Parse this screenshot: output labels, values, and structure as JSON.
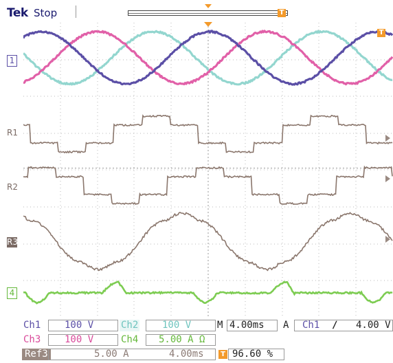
{
  "header": {
    "brand": "Tek",
    "acquisition_state": "Stop",
    "trigger_position_badge": "T"
  },
  "screen": {
    "trigger_level_badge": "T"
  },
  "markers": {
    "ch1": "1",
    "ref1": "R1",
    "ref2": "R2",
    "ref3": "R3",
    "ch4": "4"
  },
  "readout": {
    "row1": {
      "ch1_label": "Ch1",
      "ch1_scale": "100 V",
      "ch2_label": "Ch2",
      "ch2_scale": "100 V",
      "timebase_prefix": "M",
      "timebase": "4.00ms",
      "trigger_mode": "A",
      "trigger_source": "Ch1",
      "trigger_slope": "∕",
      "trigger_level": "4.00 V"
    },
    "row2": {
      "ch3_label": "Ch3",
      "ch3_scale": "100 V",
      "ch4_label": "Ch4",
      "ch4_scale": "5.00 A Ω"
    },
    "row3": {
      "ref_label": "Ref3",
      "ref_vscale": "5.00 A",
      "ref_hscale": "4.00ms",
      "position_badge": "T",
      "position": "96.60 %"
    }
  },
  "colors": {
    "ch1": "#5b4fa6",
    "ch2": "#93d6cf",
    "ch3": "#e160a8",
    "ch4": "#7dcc52",
    "ref": "#8a766c",
    "trigger": "#f39a2b"
  },
  "waveforms": {
    "period_divisions": 4.55,
    "ch1_phase_deg": 0,
    "ch2_phase_deg": 120,
    "ch3_phase_deg": 240
  }
}
